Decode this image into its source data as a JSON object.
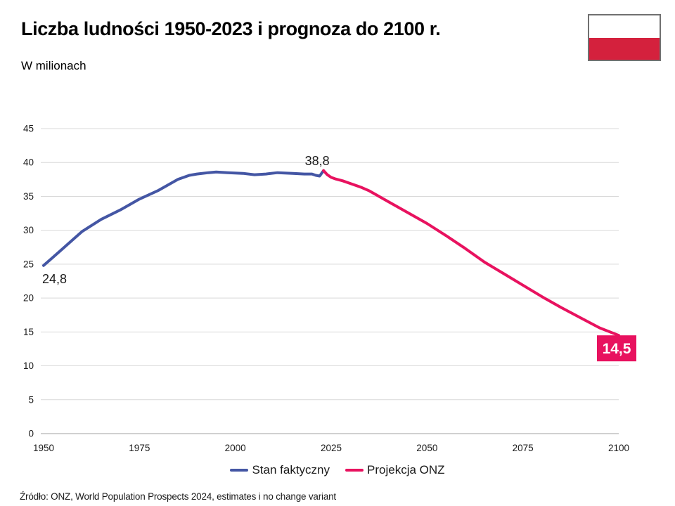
{
  "header": {
    "title": "Liczba ludności 1950-2023 i prognoza do 2100 r.",
    "subtitle": "W milionach",
    "flag": {
      "description": "flag-of-poland",
      "white": "#ffffff",
      "red": "#d4213d",
      "border": "#707070"
    }
  },
  "chart_data": {
    "type": "line",
    "title": "Liczba ludności 1950-2023 i prognoza do 2100 r.",
    "subtitle": "W milionach",
    "xlabel": "",
    "ylabel": "",
    "xlim": [
      1950,
      2100
    ],
    "ylim": [
      0,
      45
    ],
    "x_ticks": [
      "1950",
      "1975",
      "2000",
      "2025",
      "2050",
      "2075",
      "2100"
    ],
    "y_ticks": [
      "0",
      "5",
      "10",
      "15",
      "20",
      "25",
      "30",
      "35",
      "40",
      "45"
    ],
    "grid": "horizontal",
    "legend_position": "bottom-center",
    "colors": {
      "actual": "#4456a4",
      "projection": "#e8125f",
      "grid": "#d9d9d9",
      "axis": "#c0c0c0",
      "tick_text": "#1a1a1a"
    },
    "series": [
      {
        "name": "Stan faktyczny",
        "color_key": "actual",
        "points": [
          [
            1950,
            24.8
          ],
          [
            1952,
            25.8
          ],
          [
            1955,
            27.3
          ],
          [
            1958,
            28.8
          ],
          [
            1960,
            29.8
          ],
          [
            1965,
            31.6
          ],
          [
            1970,
            33.0
          ],
          [
            1975,
            34.6
          ],
          [
            1980,
            35.9
          ],
          [
            1985,
            37.5
          ],
          [
            1988,
            38.1
          ],
          [
            1990,
            38.3
          ],
          [
            1993,
            38.5
          ],
          [
            1995,
            38.6
          ],
          [
            1998,
            38.5
          ],
          [
            2002,
            38.4
          ],
          [
            2005,
            38.2
          ],
          [
            2008,
            38.3
          ],
          [
            2011,
            38.5
          ],
          [
            2015,
            38.4
          ],
          [
            2018,
            38.3
          ],
          [
            2020,
            38.3
          ],
          [
            2021,
            38.1
          ],
          [
            2022,
            38.0
          ],
          [
            2023,
            38.8
          ]
        ]
      },
      {
        "name": "Projekcja ONZ",
        "color_key": "projection",
        "points": [
          [
            2023,
            38.8
          ],
          [
            2024,
            38.2
          ],
          [
            2025,
            37.8
          ],
          [
            2026,
            37.6
          ],
          [
            2028,
            37.3
          ],
          [
            2030,
            36.9
          ],
          [
            2033,
            36.3
          ],
          [
            2035,
            35.8
          ],
          [
            2040,
            34.2
          ],
          [
            2045,
            32.6
          ],
          [
            2050,
            31.0
          ],
          [
            2055,
            29.2
          ],
          [
            2060,
            27.3
          ],
          [
            2065,
            25.3
          ],
          [
            2070,
            23.6
          ],
          [
            2075,
            21.9
          ],
          [
            2080,
            20.2
          ],
          [
            2085,
            18.6
          ],
          [
            2090,
            17.1
          ],
          [
            2095,
            15.6
          ],
          [
            2100,
            14.5
          ]
        ]
      }
    ],
    "legend": [
      {
        "label": "Stan faktyczny",
        "color": "#4456a4"
      },
      {
        "label": "Projekcja ONZ",
        "color": "#e8125f"
      }
    ],
    "annotations": [
      {
        "text": "24,8",
        "year": 1950,
        "value": 24.8,
        "placement": "below-start",
        "color": "#1a1a1a"
      },
      {
        "text": "38,8",
        "year": 2023,
        "value": 38.8,
        "placement": "above",
        "color": "#1a1a1a"
      },
      {
        "text": "14,5",
        "year": 2100,
        "value": 14.5,
        "placement": "badge",
        "bg": "#e8125f",
        "color": "#ffffff"
      }
    ]
  },
  "footer": {
    "source": "Źródło: ONZ, World Population Prospects 2024, estimates i no change variant"
  }
}
